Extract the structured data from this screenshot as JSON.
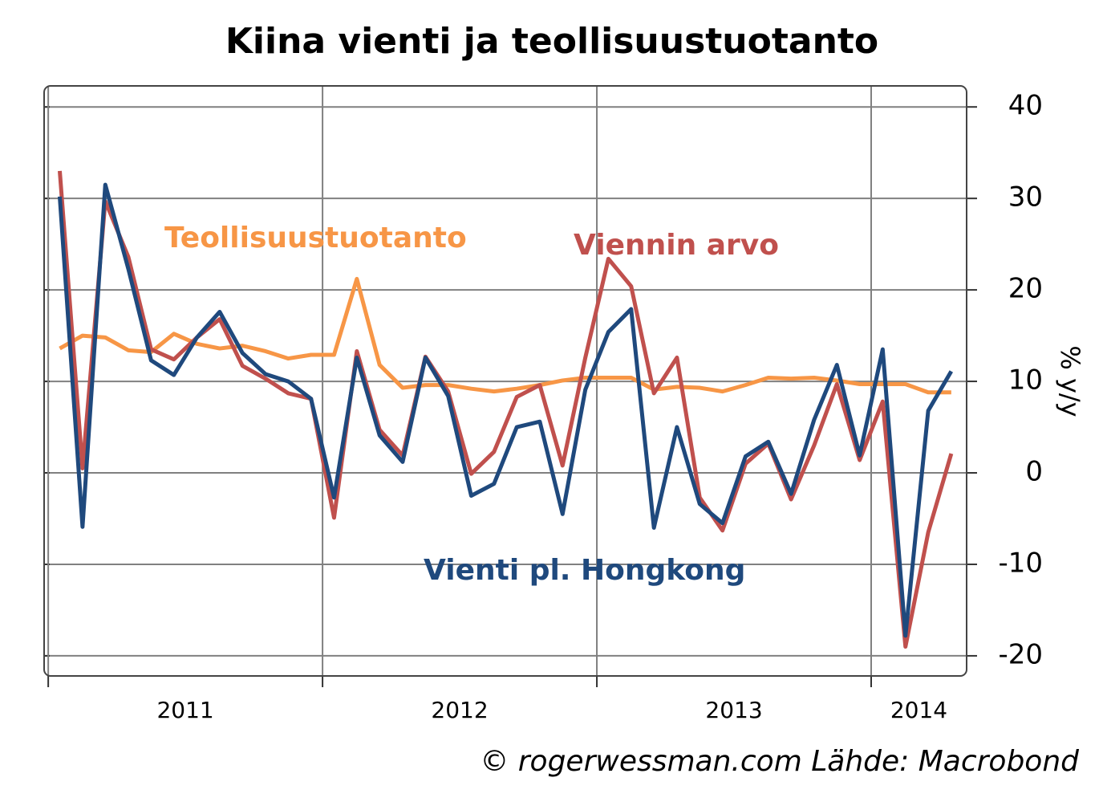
{
  "chart_data": {
    "type": "line",
    "title": "Kiina vienti ja teollisuustuotanto",
    "y_label": "% y/y",
    "source": "© rogerwessman.com Lähde: Macrobond",
    "x": [
      2011.042,
      2011.125,
      2011.208,
      2011.292,
      2011.375,
      2011.458,
      2011.542,
      2011.625,
      2011.708,
      2011.792,
      2011.875,
      2011.958,
      2012.042,
      2012.125,
      2012.208,
      2012.292,
      2012.375,
      2012.458,
      2012.542,
      2012.625,
      2012.708,
      2012.792,
      2012.875,
      2012.958,
      2013.042,
      2013.125,
      2013.208,
      2013.292,
      2013.375,
      2013.458,
      2013.542,
      2013.625,
      2013.708,
      2013.792,
      2013.875,
      2013.958,
      2014.042,
      2014.125,
      2014.208,
      2014.292
    ],
    "series": [
      {
        "name": "Viennin arvo",
        "color": "#c0504d",
        "values": [
          33.0,
          0.5,
          29.7,
          23.6,
          13.5,
          12.4,
          14.8,
          16.8,
          11.7,
          10.3,
          8.7,
          8.1,
          -4.9,
          13.3,
          4.7,
          1.9,
          12.7,
          8.9,
          -0.1,
          2.3,
          8.3,
          9.6,
          0.8,
          12.6,
          23.4,
          20.4,
          8.7,
          12.6,
          -2.7,
          -6.3,
          1.0,
          3.2,
          -2.9,
          3.0,
          9.7,
          1.4,
          7.8,
          -19.0,
          -6.5,
          2.1
        ]
      },
      {
        "name": "Vienti pl. Hongkong",
        "color": "#1f497d",
        "values": [
          30.2,
          -5.9,
          31.5,
          22.3,
          12.3,
          10.7,
          14.8,
          17.6,
          13.1,
          10.8,
          10.0,
          8.1,
          -2.7,
          12.6,
          4.1,
          1.2,
          12.6,
          8.4,
          -2.5,
          -1.2,
          5.0,
          5.6,
          -4.5,
          9.1,
          15.4,
          17.9,
          -6.0,
          5.0,
          -3.4,
          -5.5,
          1.8,
          3.4,
          -2.3,
          5.8,
          11.8,
          1.9,
          13.5,
          -17.8,
          6.8,
          11.1
        ]
      },
      {
        "name": "Teollisuustuotanto",
        "color": "#f79646",
        "values": [
          13.6,
          15.0,
          14.8,
          13.4,
          13.2,
          15.2,
          14.1,
          13.6,
          13.9,
          13.3,
          12.5,
          12.9,
          12.9,
          21.2,
          11.8,
          9.3,
          9.6,
          9.6,
          9.2,
          8.9,
          9.2,
          9.6,
          10.1,
          10.4,
          10.4,
          10.4,
          9.1,
          9.4,
          9.3,
          8.9,
          9.6,
          10.4,
          10.3,
          10.4,
          10.1,
          9.7,
          9.7,
          9.7,
          8.8,
          8.8
        ]
      }
    ],
    "xlim": [
      2010.985,
      2014.348
    ],
    "xticks": [
      {
        "value": 2011,
        "label": "2011"
      },
      {
        "value": 2012,
        "label": "2012"
      },
      {
        "value": 2013,
        "label": "2013"
      },
      {
        "value": 2014,
        "label": "2014"
      }
    ],
    "ylim": [
      -22.2,
      42.3
    ],
    "yticks": [
      -20,
      -10,
      0,
      10,
      20,
      30,
      40
    ],
    "grid": true
  }
}
